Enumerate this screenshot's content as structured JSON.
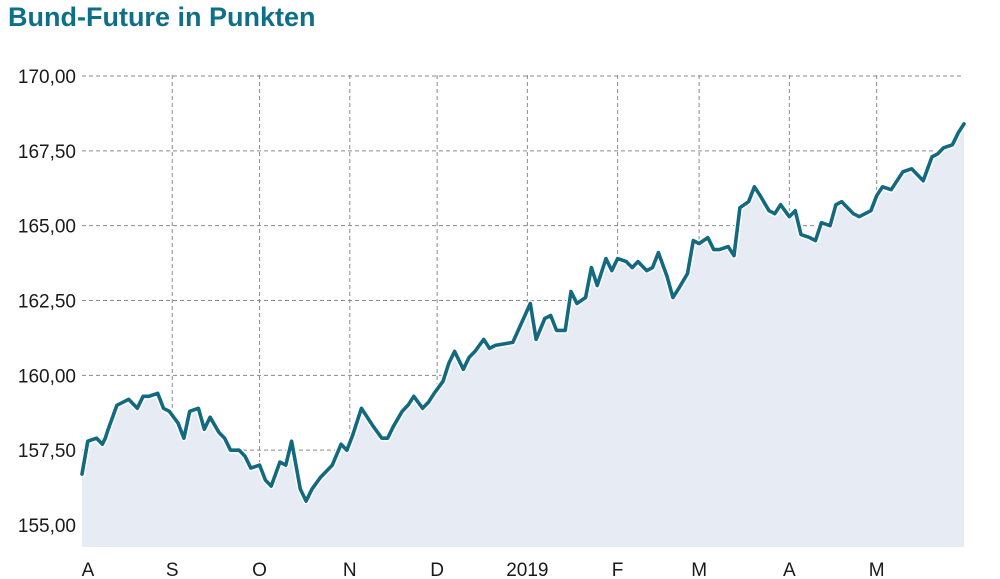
{
  "chart_data": {
    "type": "area",
    "title": "Bund-Future in Punkten",
    "xlabel": "",
    "ylabel": "",
    "ylim": [
      155.0,
      170.0
    ],
    "yticks": [
      155.0,
      157.5,
      160.0,
      162.5,
      165.0,
      167.5,
      170.0
    ],
    "ytick_labels": [
      "155,00",
      "157,50",
      "160,00",
      "162,50",
      "165,00",
      "167,50",
      "170,00"
    ],
    "xlim": [
      "2018-08-01",
      "2019-05-31"
    ],
    "xticks": [
      "2018-08-01",
      "2018-09-01",
      "2018-10-01",
      "2018-11-01",
      "2018-12-01",
      "2019-01-01",
      "2019-02-01",
      "2019-03-01",
      "2019-04-01",
      "2019-05-01"
    ],
    "xtick_labels": [
      "A",
      "S",
      "O",
      "N",
      "D",
      "2019",
      "F",
      "M",
      "A",
      "M"
    ],
    "grid": true,
    "line_color": "#136a80",
    "fill_color": "#e6ebf4",
    "grid_color": "#8a8a8a",
    "title_color": "#0e6f89",
    "series": [
      {
        "x": [
          "2018-08-01",
          "2018-08-03",
          "2018-08-06",
          "2018-08-08",
          "2018-08-09",
          "2018-08-10",
          "2018-08-13",
          "2018-08-15",
          "2018-08-17",
          "2018-08-20",
          "2018-08-22",
          "2018-08-24",
          "2018-08-27",
          "2018-08-29",
          "2018-08-31",
          "2018-09-03",
          "2018-09-05",
          "2018-09-07",
          "2018-09-10",
          "2018-09-12",
          "2018-09-14",
          "2018-09-17",
          "2018-09-19",
          "2018-09-21",
          "2018-09-24",
          "2018-09-26",
          "2018-09-28",
          "2018-10-01",
          "2018-10-03",
          "2018-10-05",
          "2018-10-08",
          "2018-10-10",
          "2018-10-12",
          "2018-10-15",
          "2018-10-17",
          "2018-10-19",
          "2018-10-22",
          "2018-10-24",
          "2018-10-26",
          "2018-10-29",
          "2018-10-31",
          "2018-11-02",
          "2018-11-05",
          "2018-11-07",
          "2018-11-09",
          "2018-11-12",
          "2018-11-14",
          "2018-11-16",
          "2018-11-19",
          "2018-11-21",
          "2018-11-23",
          "2018-11-26",
          "2018-11-28",
          "2018-11-30",
          "2018-12-03",
          "2018-12-05",
          "2018-12-07",
          "2018-12-10",
          "2018-12-12",
          "2018-12-14",
          "2018-12-17",
          "2018-12-19",
          "2018-12-21",
          "2018-12-27",
          "2019-01-02",
          "2019-01-04",
          "2019-01-07",
          "2019-01-09",
          "2019-01-11",
          "2019-01-14",
          "2019-01-16",
          "2019-01-18",
          "2019-01-21",
          "2019-01-23",
          "2019-01-25",
          "2019-01-28",
          "2019-01-30",
          "2019-02-01",
          "2019-02-04",
          "2019-02-06",
          "2019-02-08",
          "2019-02-11",
          "2019-02-13",
          "2019-02-15",
          "2019-02-18",
          "2019-02-20",
          "2019-02-22",
          "2019-02-25",
          "2019-02-27",
          "2019-03-01",
          "2019-03-04",
          "2019-03-06",
          "2019-03-08",
          "2019-03-11",
          "2019-03-13",
          "2019-03-15",
          "2019-03-18",
          "2019-03-20",
          "2019-03-22",
          "2019-03-25",
          "2019-03-27",
          "2019-03-29",
          "2019-04-01",
          "2019-04-03",
          "2019-04-05",
          "2019-04-08",
          "2019-04-10",
          "2019-04-12",
          "2019-04-15",
          "2019-04-17",
          "2019-04-19",
          "2019-04-23",
          "2019-04-25",
          "2019-04-29",
          "2019-05-01",
          "2019-05-03",
          "2019-05-06",
          "2019-05-08",
          "2019-05-10",
          "2019-05-13",
          "2019-05-15",
          "2019-05-17",
          "2019-05-20",
          "2019-05-22",
          "2019-05-24",
          "2019-05-27",
          "2019-05-29",
          "2019-05-31"
        ],
        "y": [
          156.7,
          157.8,
          157.9,
          157.7,
          157.9,
          158.2,
          159.0,
          159.1,
          159.2,
          158.9,
          159.3,
          159.3,
          159.4,
          158.9,
          158.8,
          158.4,
          157.9,
          158.8,
          158.9,
          158.2,
          158.6,
          158.1,
          157.9,
          157.5,
          157.5,
          157.3,
          156.9,
          157.0,
          156.5,
          156.3,
          157.1,
          157.0,
          157.8,
          156.2,
          155.8,
          156.2,
          156.6,
          156.8,
          157.0,
          157.7,
          157.5,
          158.0,
          158.9,
          158.6,
          158.3,
          157.9,
          157.9,
          158.3,
          158.8,
          159.0,
          159.3,
          158.9,
          159.1,
          159.4,
          159.8,
          160.4,
          160.8,
          160.2,
          160.6,
          160.8,
          161.2,
          160.9,
          161.0,
          161.1,
          162.4,
          161.2,
          161.9,
          162.0,
          161.5,
          161.5,
          162.8,
          162.4,
          162.6,
          163.6,
          163.0,
          163.9,
          163.5,
          163.9,
          163.8,
          163.6,
          163.8,
          163.5,
          163.6,
          164.1,
          163.3,
          162.6,
          162.9,
          163.4,
          164.5,
          164.4,
          164.6,
          164.2,
          164.2,
          164.3,
          164.0,
          165.6,
          165.8,
          166.3,
          166.0,
          165.5,
          165.4,
          165.7,
          165.3,
          165.5,
          164.7,
          164.6,
          164.5,
          165.1,
          165.0,
          165.7,
          165.8,
          165.4,
          165.3,
          165.5,
          166.0,
          166.3,
          166.2,
          166.5,
          166.8,
          166.9,
          166.7,
          166.5,
          167.3,
          167.4,
          167.6,
          167.7,
          168.1,
          168.4
        ]
      }
    ]
  }
}
